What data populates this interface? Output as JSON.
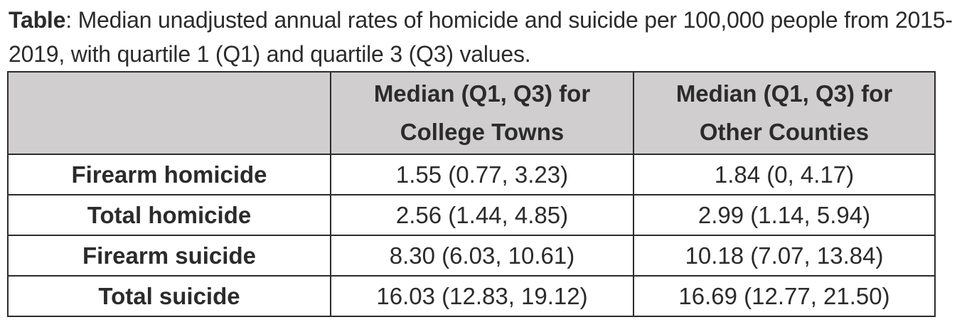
{
  "caption": {
    "label": "Table",
    "text": ": Median unadjusted annual rates of homicide and suicide per 100,000 people from 2015-2019, with quartile 1 (Q1) and quartile 3 (Q3) values."
  },
  "table": {
    "header": {
      "corner": "",
      "col1_line1": "Median (Q1, Q3) for",
      "col1_line2": "College Towns",
      "col2_line1": "Median (Q1, Q3) for",
      "col2_line2": "Other Counties"
    },
    "rows": [
      {
        "label": "Firearm homicide",
        "college_towns": "1.55 (0.77, 3.23)",
        "other_counties": "1.84 (0, 4.17)"
      },
      {
        "label": "Total homicide",
        "college_towns": "2.56 (1.44, 4.85)",
        "other_counties": "2.99 (1.14, 5.94)"
      },
      {
        "label": "Firearm suicide",
        "college_towns": "8.30 (6.03, 10.61)",
        "other_counties": "10.18 (7.07, 13.84)"
      },
      {
        "label": "Total suicide",
        "college_towns": "16.03 (12.83, 19.12)",
        "other_counties": "16.69 (12.77, 21.50)"
      }
    ]
  },
  "colors": {
    "header_bg": "#d0cece",
    "border": "#2b2b2b",
    "text": "#2b2b2b"
  }
}
